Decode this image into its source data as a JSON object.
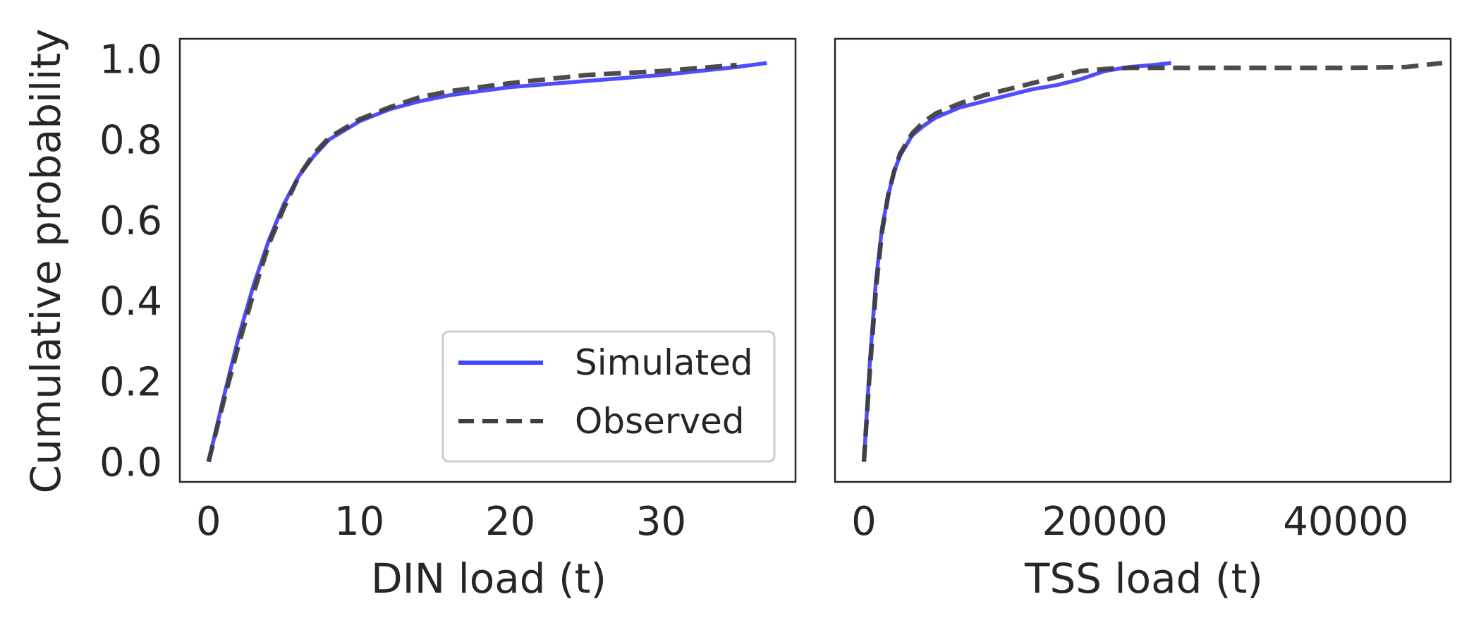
{
  "chart_data": [
    {
      "type": "line",
      "xlabel": "DIN load (t)",
      "ylabel": "Cumulative probability",
      "xlim": [
        -1.9,
        38.9
      ],
      "ylim": [
        -0.05,
        1.05
      ],
      "xticks": [
        0,
        10,
        20,
        30
      ],
      "yticks": [
        0.0,
        0.2,
        0.4,
        0.6,
        0.8,
        1.0
      ],
      "xtick_labels": [
        "0",
        "10",
        "20",
        "30"
      ],
      "ytick_labels": [
        "0.0",
        "0.2",
        "0.4",
        "0.6",
        "0.8",
        "1.0"
      ],
      "grid": false,
      "legend_position": "lower-right",
      "series": [
        {
          "name": "Simulated",
          "color": "#4444ff",
          "style": "solid",
          "x": [
            0,
            1,
            2,
            3,
            4,
            5,
            6,
            7,
            8,
            10,
            12,
            14,
            16,
            18,
            20,
            25,
            30,
            35,
            37
          ],
          "y": [
            0.0,
            0.16,
            0.31,
            0.44,
            0.55,
            0.64,
            0.71,
            0.76,
            0.8,
            0.845,
            0.875,
            0.895,
            0.91,
            0.92,
            0.93,
            0.945,
            0.96,
            0.98,
            0.99
          ]
        },
        {
          "name": "Observed",
          "color": "#3d3d3d",
          "style": "dashed",
          "x": [
            0,
            1,
            2,
            3,
            4,
            5,
            6,
            7,
            8,
            10,
            12,
            14,
            16,
            18,
            20,
            25,
            30,
            35
          ],
          "y": [
            0.0,
            0.15,
            0.29,
            0.42,
            0.54,
            0.63,
            0.71,
            0.765,
            0.805,
            0.85,
            0.88,
            0.905,
            0.92,
            0.93,
            0.94,
            0.96,
            0.97,
            0.985
          ]
        }
      ]
    },
    {
      "type": "line",
      "xlabel": "TSS load (t)",
      "ylabel": "",
      "xlim": [
        -2400,
        48700
      ],
      "ylim": [
        -0.05,
        1.05
      ],
      "xticks": [
        0,
        20000,
        40000
      ],
      "yticks": [],
      "xtick_labels": [
        "0",
        "20000",
        "40000"
      ],
      "ytick_labels": [],
      "grid": false,
      "series": [
        {
          "name": "Simulated",
          "color": "#4444ff",
          "style": "solid",
          "x": [
            0,
            500,
            1000,
            1500,
            2000,
            2500,
            3000,
            4000,
            5000,
            6000,
            8000,
            10000,
            12000,
            14000,
            16000,
            18000,
            20000,
            22000,
            24000,
            25500
          ],
          "y": [
            0.0,
            0.25,
            0.45,
            0.58,
            0.66,
            0.72,
            0.76,
            0.81,
            0.835,
            0.855,
            0.88,
            0.895,
            0.91,
            0.925,
            0.935,
            0.95,
            0.97,
            0.98,
            0.985,
            0.99
          ]
        },
        {
          "name": "Observed",
          "color": "#3d3d3d",
          "style": "dashed",
          "x": [
            0,
            500,
            1000,
            1500,
            2000,
            2500,
            3000,
            4000,
            5000,
            6000,
            8000,
            10000,
            12000,
            14000,
            16000,
            18000,
            20000,
            22000,
            25000,
            30000,
            35000,
            40000,
            45000,
            48000
          ],
          "y": [
            0.0,
            0.23,
            0.43,
            0.57,
            0.66,
            0.72,
            0.765,
            0.815,
            0.845,
            0.865,
            0.89,
            0.91,
            0.925,
            0.94,
            0.955,
            0.97,
            0.975,
            0.978,
            0.978,
            0.978,
            0.978,
            0.978,
            0.98,
            0.99
          ]
        }
      ]
    }
  ]
}
